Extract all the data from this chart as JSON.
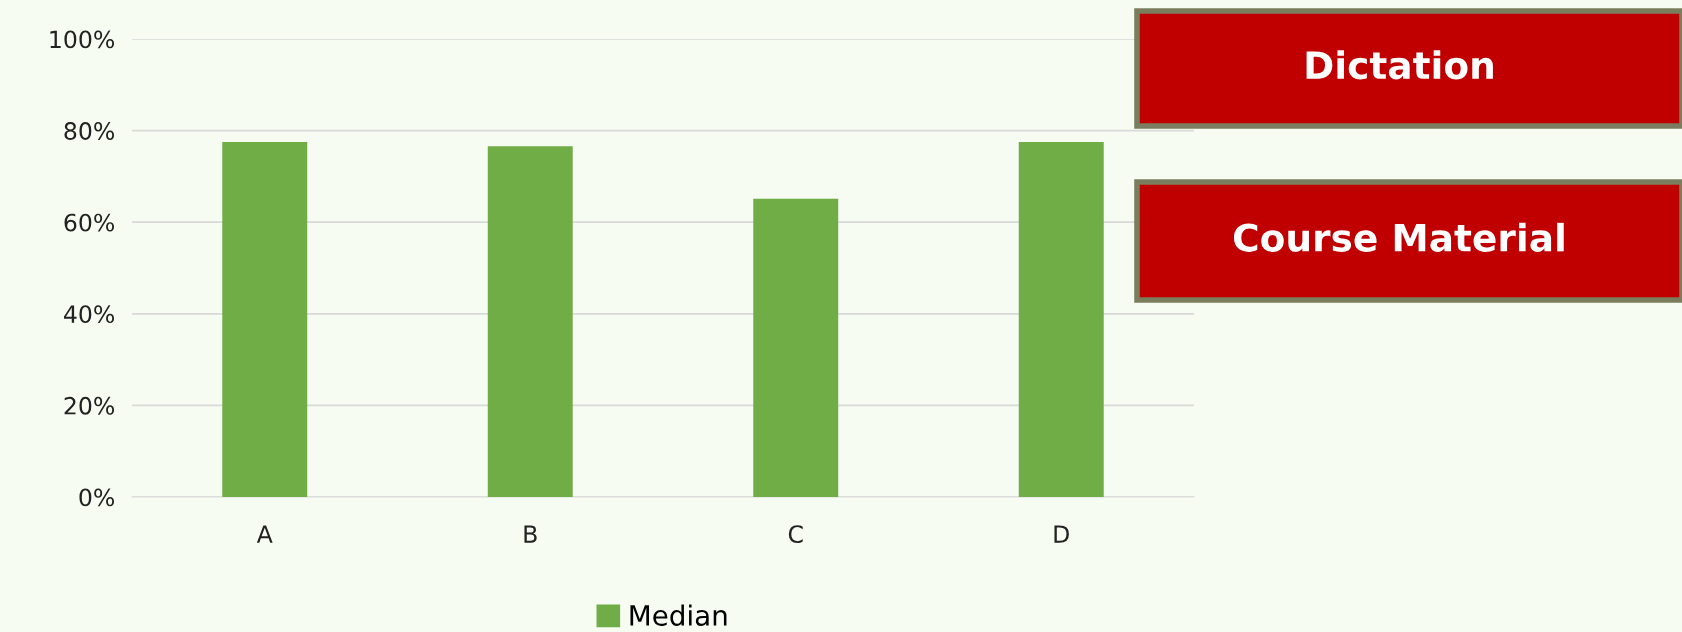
{
  "chart_data": {
    "type": "bar",
    "categories": [
      "A",
      "B",
      "C",
      "D"
    ],
    "series": [
      {
        "name": "Median",
        "color": "#70ad47",
        "values": [
          77.5,
          76.6,
          65.1,
          77.5
        ]
      }
    ],
    "ylim": [
      0,
      100
    ],
    "yticks": [
      {
        "value": 0,
        "label": "0%"
      },
      {
        "value": 20,
        "label": "20%"
      },
      {
        "value": 40,
        "label": "40%"
      },
      {
        "value": 60,
        "label": "60%"
      },
      {
        "value": 80,
        "label": "80%"
      },
      {
        "value": 100,
        "label": "100%"
      }
    ],
    "grid": "y",
    "legend": "bottom",
    "annotations": [
      "Dictation",
      "Course Material"
    ]
  }
}
